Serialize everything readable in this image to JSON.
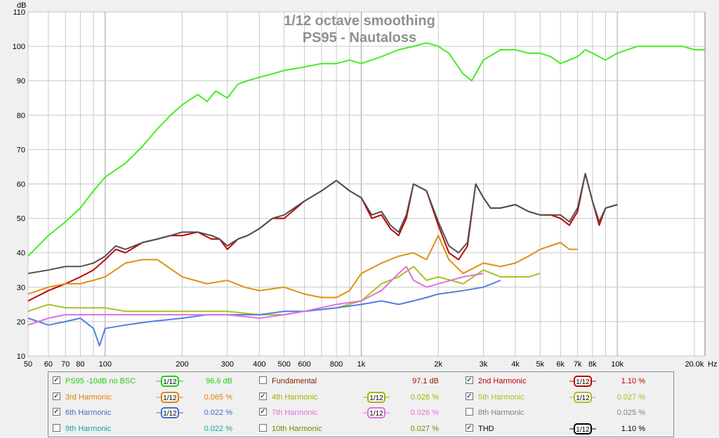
{
  "chart_data": {
    "type": "line",
    "title": "1/12 octave smoothing",
    "subtitle": "PS95 - Nautaloss",
    "ylabel": "dB",
    "xunit": "Hz",
    "xscale": "log",
    "xlim": [
      50,
      22000
    ],
    "ylim": [
      10,
      110
    ],
    "xticks": [
      {
        "v": 50,
        "label": "50"
      },
      {
        "v": 60,
        "label": "60"
      },
      {
        "v": 70,
        "label": "70"
      },
      {
        "v": 80,
        "label": "80"
      },
      {
        "v": 100,
        "label": "100"
      },
      {
        "v": 200,
        "label": "200"
      },
      {
        "v": 300,
        "label": "300"
      },
      {
        "v": 400,
        "label": "400"
      },
      {
        "v": 500,
        "label": "500"
      },
      {
        "v": 600,
        "label": "600"
      },
      {
        "v": 800,
        "label": "800"
      },
      {
        "v": 1000,
        "label": "1k"
      },
      {
        "v": 2000,
        "label": "2k"
      },
      {
        "v": 3000,
        "label": "3k"
      },
      {
        "v": 4000,
        "label": "4k"
      },
      {
        "v": 5000,
        "label": "5k"
      },
      {
        "v": 6000,
        "label": "6k"
      },
      {
        "v": 7000,
        "label": "7k"
      },
      {
        "v": 8000,
        "label": "8k"
      },
      {
        "v": 10000,
        "label": "10k"
      },
      {
        "v": 20000,
        "label": "20.0k"
      }
    ],
    "yticks": [
      10,
      20,
      30,
      40,
      50,
      60,
      70,
      80,
      90,
      100,
      110
    ],
    "grid": true,
    "series": [
      {
        "name": "PS95 -10dB no BSC",
        "color": "#44ee22",
        "x": [
          50,
          60,
          70,
          80,
          90,
          100,
          120,
          140,
          160,
          180,
          200,
          230,
          250,
          270,
          300,
          330,
          360,
          400,
          450,
          500,
          600,
          700,
          800,
          900,
          1000,
          1200,
          1400,
          1600,
          1800,
          2000,
          2200,
          2500,
          2700,
          3000,
          3500,
          4000,
          4500,
          5000,
          5500,
          6000,
          6500,
          7000,
          7500,
          8000,
          9000,
          10000,
          12000,
          14000,
          16000,
          18000,
          20000,
          22000
        ],
        "y": [
          39,
          45,
          49,
          53,
          58,
          62,
          66,
          71,
          76,
          80,
          83,
          86,
          84,
          87,
          85,
          89,
          90,
          91,
          92,
          93,
          94,
          95,
          95,
          96,
          95,
          97,
          99,
          100,
          101,
          100,
          98,
          92,
          90,
          96,
          99,
          99,
          98,
          98,
          97,
          95,
          96,
          97,
          99,
          98,
          96,
          98,
          100,
          100,
          100,
          100,
          99,
          99
        ]
      },
      {
        "name": "2nd Harmonic",
        "color": "#c00000",
        "x": [
          50,
          60,
          70,
          80,
          90,
          100,
          110,
          120,
          140,
          160,
          180,
          200,
          230,
          260,
          280,
          300,
          330,
          360,
          400,
          450,
          500,
          600,
          700,
          800,
          900,
          1000,
          1100,
          1200,
          1300,
          1400,
          1500,
          1600,
          1800,
          2000,
          2200,
          2400,
          2600,
          2800,
          3000,
          3200,
          3500,
          4000,
          4500,
          5000,
          5500,
          6000,
          6500,
          7000,
          7500,
          8000,
          8500,
          9000,
          10000
        ],
        "y": [
          26,
          29,
          31,
          33,
          35,
          38,
          41,
          40,
          43,
          44,
          45,
          45,
          46,
          44,
          44,
          41,
          44,
          45,
          47,
          50,
          50,
          55,
          58,
          61,
          58,
          56,
          50,
          51,
          47,
          45,
          50,
          60,
          58,
          48,
          40,
          38,
          42,
          60,
          56,
          53,
          53,
          54,
          52,
          51,
          51,
          50,
          48,
          52,
          63,
          55,
          48,
          53,
          54
        ]
      },
      {
        "name": "3rd Harmonic",
        "color": "#e09010",
        "x": [
          50,
          60,
          70,
          80,
          90,
          100,
          120,
          140,
          160,
          200,
          250,
          300,
          350,
          400,
          500,
          600,
          700,
          800,
          900,
          1000,
          1200,
          1400,
          1600,
          1800,
          2000,
          2200,
          2500,
          3000,
          3500,
          4000,
          4500,
          5000,
          6000,
          6500,
          7000
        ],
        "y": [
          28,
          30,
          31,
          31,
          32,
          33,
          37,
          38,
          38,
          33,
          31,
          32,
          30,
          29,
          30,
          28,
          27,
          27,
          29,
          34,
          37,
          39,
          40,
          38,
          45,
          38,
          34,
          37,
          36,
          37,
          39,
          41,
          43,
          41,
          41
        ]
      },
      {
        "name": "4th Harmonic",
        "color": "#a8c020",
        "x": [
          50,
          60,
          70,
          80,
          100,
          120,
          150,
          200,
          250,
          300,
          400,
          500,
          600,
          800,
          1000,
          1200,
          1400,
          1600,
          1800,
          2000,
          2500,
          3000,
          3500,
          4000,
          4500,
          5000
        ],
        "y": [
          23,
          25,
          24,
          24,
          24,
          23,
          23,
          23,
          23,
          23,
          22,
          22,
          23,
          24,
          26,
          31,
          33,
          36,
          32,
          33,
          31,
          35,
          33,
          33,
          33,
          34
        ]
      },
      {
        "name": "6th Harmonic",
        "color": "#5080e0",
        "x": [
          50,
          60,
          70,
          80,
          90,
          95,
          100,
          120,
          150,
          200,
          250,
          300,
          400,
          500,
          600,
          800,
          1000,
          1200,
          1400,
          1600,
          1800,
          2000,
          2500,
          3000,
          3500
        ],
        "y": [
          21,
          19,
          20,
          21,
          18,
          13,
          18,
          19,
          20,
          21,
          22,
          22,
          22,
          23,
          23,
          24,
          25,
          26,
          25,
          26,
          27,
          28,
          29,
          30,
          32
        ]
      },
      {
        "name": "7th Harmonic",
        "color": "#e070e0",
        "x": [
          50,
          60,
          70,
          80,
          100,
          120,
          150,
          200,
          250,
          300,
          400,
          500,
          600,
          800,
          1000,
          1200,
          1400,
          1500,
          1600,
          1800,
          2000,
          2500,
          3000
        ],
        "y": [
          19,
          21,
          22,
          22,
          22,
          22,
          22,
          22,
          22,
          22,
          21,
          22,
          23,
          25,
          26,
          29,
          34,
          36,
          32,
          30,
          31,
          33,
          34
        ]
      },
      {
        "name": "THD",
        "color": "#505050",
        "x": [
          50,
          60,
          70,
          80,
          90,
          100,
          110,
          120,
          140,
          160,
          180,
          200,
          230,
          260,
          280,
          300,
          330,
          360,
          400,
          450,
          500,
          600,
          700,
          800,
          900,
          1000,
          1100,
          1200,
          1300,
          1400,
          1500,
          1600,
          1800,
          2000,
          2200,
          2400,
          2600,
          2800,
          3000,
          3200,
          3500,
          4000,
          4500,
          5000,
          5500,
          6000,
          6500,
          7000,
          7500,
          8000,
          8500,
          9000,
          10000
        ],
        "y": [
          34,
          35,
          36,
          36,
          37,
          39,
          42,
          41,
          43,
          44,
          45,
          46,
          46,
          45,
          44,
          42,
          44,
          45,
          47,
          50,
          51,
          55,
          58,
          61,
          58,
          56,
          51,
          52,
          48,
          46,
          51,
          60,
          58,
          49,
          42,
          40,
          43,
          60,
          56,
          53,
          53,
          54,
          52,
          51,
          51,
          51,
          49,
          53,
          63,
          55,
          49,
          53,
          54
        ]
      }
    ]
  },
  "legend": {
    "rows": [
      [
        {
          "checked": true,
          "name": "PS95 -10dB no BSC",
          "smoothing": "1/12",
          "value": "96.6 dB",
          "color": "#22cc11"
        },
        {
          "checked": false,
          "name": "Fundamental",
          "smoothing": "",
          "value": "97.1 dB",
          "color": "#8a2000"
        },
        {
          "checked": true,
          "name": "2nd Harmonic",
          "smoothing": "1/12",
          "value": "1.10 %",
          "color": "#c00000"
        }
      ],
      [
        {
          "checked": true,
          "name": "3rd Harmonic",
          "smoothing": "1/12",
          "value": "0.065 %",
          "color": "#e08000"
        },
        {
          "checked": true,
          "name": "4th Harmonic",
          "smoothing": "1/12",
          "value": "0.026 %",
          "color": "#a8b000"
        },
        {
          "checked": true,
          "name": "5th Harmonic",
          "smoothing": "1/12",
          "value": "0.027 %",
          "color": "#a8c020"
        }
      ],
      [
        {
          "checked": true,
          "name": "6th Harmonic",
          "smoothing": "1/12",
          "value": "0.022 %",
          "color": "#4070d0"
        },
        {
          "checked": true,
          "name": "7th Harmonic",
          "smoothing": "1/12",
          "value": "0.026 %",
          "color": "#e070e0"
        },
        {
          "checked": false,
          "name": "8th Harmonic",
          "smoothing": "",
          "value": "0.025 %",
          "color": "#808080"
        }
      ],
      [
        {
          "checked": false,
          "name": "9th Harmonic",
          "smoothing": "",
          "value": "0.022 %",
          "color": "#20a0a0"
        },
        {
          "checked": false,
          "name": "10th Harmonic",
          "smoothing": "",
          "value": "0.027 %",
          "color": "#808000"
        },
        {
          "checked": true,
          "name": "THD",
          "smoothing": "1/12",
          "value": "1.10 %",
          "color": "#000000"
        }
      ]
    ]
  }
}
